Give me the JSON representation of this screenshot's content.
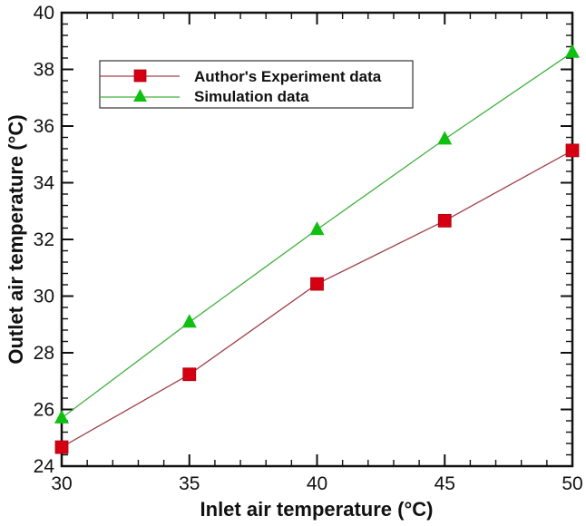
{
  "chart_data": {
    "type": "line",
    "title": "",
    "xlabel": "Inlet air temperature (°C)",
    "ylabel": "Outlet air temperature (°C)",
    "x": [
      30,
      35,
      40,
      45,
      50
    ],
    "xlim": [
      30,
      50
    ],
    "ylim": [
      24,
      40
    ],
    "x_ticks": [
      30,
      35,
      40,
      45,
      50
    ],
    "y_ticks": [
      24,
      26,
      28,
      30,
      32,
      34,
      36,
      38,
      40
    ],
    "x_minor_per_major": 4,
    "y_minor_per_major": 4,
    "grid": false,
    "legend_position": "upper-left (boxed)",
    "series": [
      {
        "name": "Author's Experiment data",
        "color": "#a0404a",
        "marker": "square",
        "marker_color": "#d40012",
        "values": [
          24.67,
          27.24,
          30.43,
          32.66,
          35.14
        ]
      },
      {
        "name": "Simulation data",
        "color": "#40b040",
        "marker": "triangle",
        "marker_color": "#10c010",
        "values": [
          25.7,
          29.08,
          32.35,
          35.54,
          38.6
        ]
      }
    ]
  },
  "legend": {
    "items": [
      {
        "label": "Author's Experiment data"
      },
      {
        "label": "Simulation data"
      }
    ]
  },
  "axes": {
    "x_title": "Inlet air temperature (°C)",
    "y_title": "Outlet air temperature (°C)"
  }
}
